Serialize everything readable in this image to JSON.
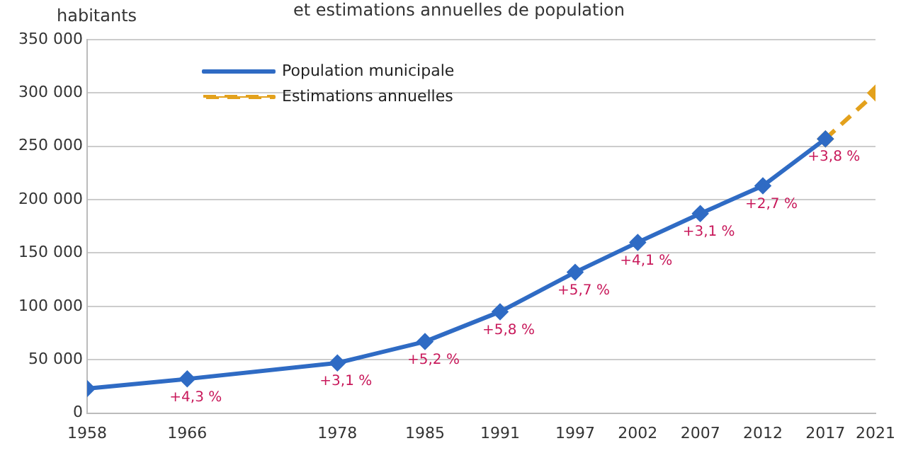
{
  "chart_data": {
    "type": "line",
    "title": "et estimations annuelles de population",
    "ylabel": "habitants",
    "x": [
      1958,
      1966,
      1978,
      1985,
      1991,
      1997,
      2002,
      2007,
      2012,
      2017
    ],
    "xlim": [
      1958,
      2021
    ],
    "xticks": [
      1958,
      1966,
      1978,
      1985,
      1991,
      1997,
      2002,
      2007,
      2012,
      2017,
      2021
    ],
    "ylim": [
      0,
      350000
    ],
    "yticks": [
      {
        "value": 0,
        "label": "0"
      },
      {
        "value": 50000,
        "label": "50 000"
      },
      {
        "value": 100000,
        "label": "100 000"
      },
      {
        "value": 150000,
        "label": "150 000"
      },
      {
        "value": 200000,
        "label": "200 000"
      },
      {
        "value": 250000,
        "label": "250 000"
      },
      {
        "value": 300000,
        "label": "300 000"
      },
      {
        "value": 350000,
        "label": "350 000"
      }
    ],
    "series": [
      {
        "name": "Population municipale",
        "color": "#2f6bc4",
        "values": [
          23000,
          32000,
          47000,
          67000,
          95000,
          132000,
          160000,
          187000,
          213000,
          257000
        ]
      },
      {
        "name": "Estimations annuelles",
        "color": "#e3a11c",
        "x": [
          2017,
          2021
        ],
        "values": [
          257000,
          300000
        ],
        "line_style": "dashed"
      }
    ],
    "annotations": [
      {
        "text": "+4,3 %",
        "x": 1966,
        "y": 32000
      },
      {
        "text": "+3,1 %",
        "x": 1978,
        "y": 47000
      },
      {
        "text": "+5,2 %",
        "x": 1985,
        "y": 67000
      },
      {
        "text": "+5,8 %",
        "x": 1991,
        "y": 95000
      },
      {
        "text": "+5,7 %",
        "x": 1997,
        "y": 132000
      },
      {
        "text": "+4,1 %",
        "x": 2002,
        "y": 160000
      },
      {
        "text": "+3,1 %",
        "x": 2007,
        "y": 187000
      },
      {
        "text": "+2,7 %",
        "x": 2012,
        "y": 213000
      },
      {
        "text": "+3,8 %",
        "x": 2017,
        "y": 257000
      }
    ],
    "marker": "diamond",
    "grid": "y",
    "legend": "top left"
  }
}
